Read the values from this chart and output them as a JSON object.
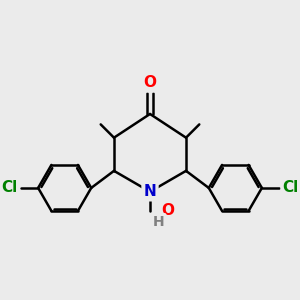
{
  "bg_color": "#ebebeb",
  "bond_color": "#000000",
  "bond_width": 1.8,
  "atom_colors": {
    "O_carbonyl": "#ff0000",
    "O_noxide": "#ff0000",
    "N": "#0000cc",
    "Cl": "#008000",
    "H": "#808080"
  },
  "font_size_atom": 11,
  "fig_size": [
    3.0,
    3.0
  ],
  "dpi": 100
}
